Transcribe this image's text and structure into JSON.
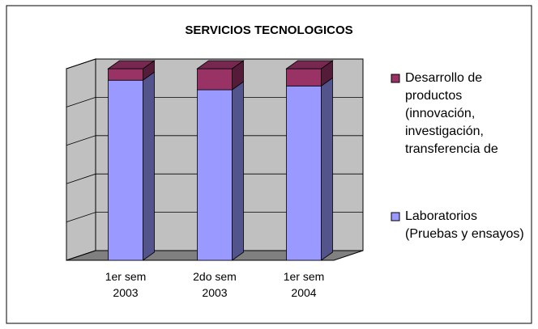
{
  "chart_data": {
    "type": "bar3d_stacked",
    "title": "SERVICIOS TECNOLOGICOS",
    "categories": [
      "1er sem 2003",
      "2do sem 2003",
      "1er sem 2004"
    ],
    "series": [
      {
        "name": "Laboratorios (Pruebas y ensayos)",
        "color": "#9999ff",
        "values": [
          94,
          89,
          91
        ]
      },
      {
        "name": "Desarrollo de productos (innovación, investigación, transferencia de",
        "color": "#993366",
        "values": [
          6,
          11,
          9
        ]
      }
    ],
    "ylim": [
      0,
      100
    ],
    "yticks": [
      0,
      20,
      40,
      60,
      80,
      100
    ],
    "grid": true,
    "legend": "right"
  }
}
